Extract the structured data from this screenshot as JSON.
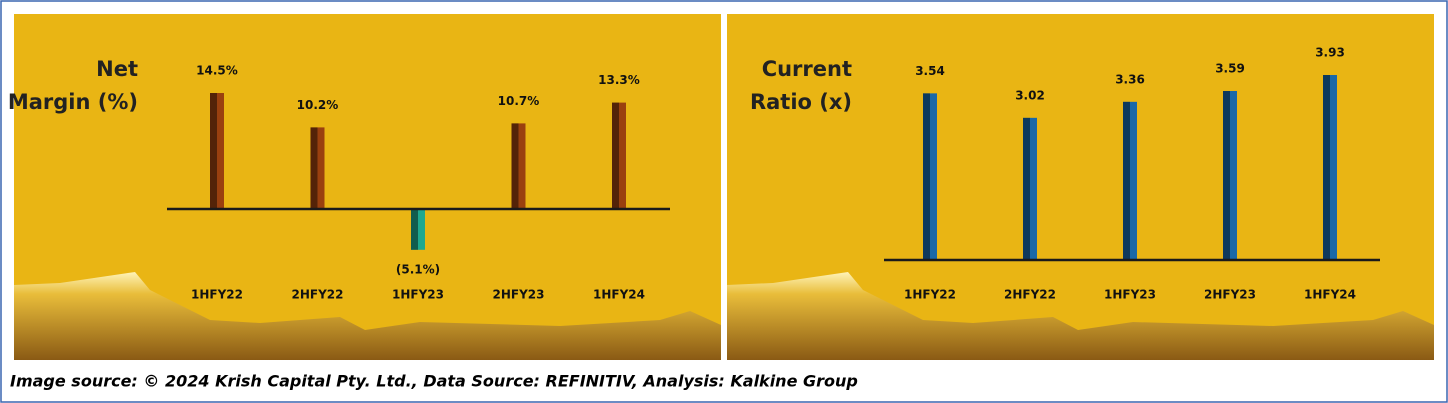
{
  "chart_data": [
    {
      "type": "bar",
      "title": [
        "Net",
        "Margin (%)"
      ],
      "categories": [
        "1HFY22",
        "2HFY22",
        "1HFY23",
        "2HFY23",
        "1HFY24"
      ],
      "values": [
        14.5,
        10.2,
        -5.1,
        10.7,
        13.3
      ],
      "value_labels": [
        "14.5%",
        "10.2%",
        "(5.1%)",
        "10.7%",
        "13.3%"
      ],
      "color": "#9a400f",
      "negative_color": "#1fa88f"
    },
    {
      "type": "bar",
      "title": [
        "Current",
        "Ratio (x)"
      ],
      "categories": [
        "1HFY22",
        "2HFY22",
        "1HFY23",
        "2HFY23",
        "1HFY24"
      ],
      "values": [
        3.54,
        3.02,
        3.36,
        3.59,
        3.93
      ],
      "color": "#1a68a8"
    }
  ],
  "footer": "Image source: © 2024 Krish Capital Pty. Ltd., Data Source: REFINITIV, Analysis: Kalkine Group"
}
